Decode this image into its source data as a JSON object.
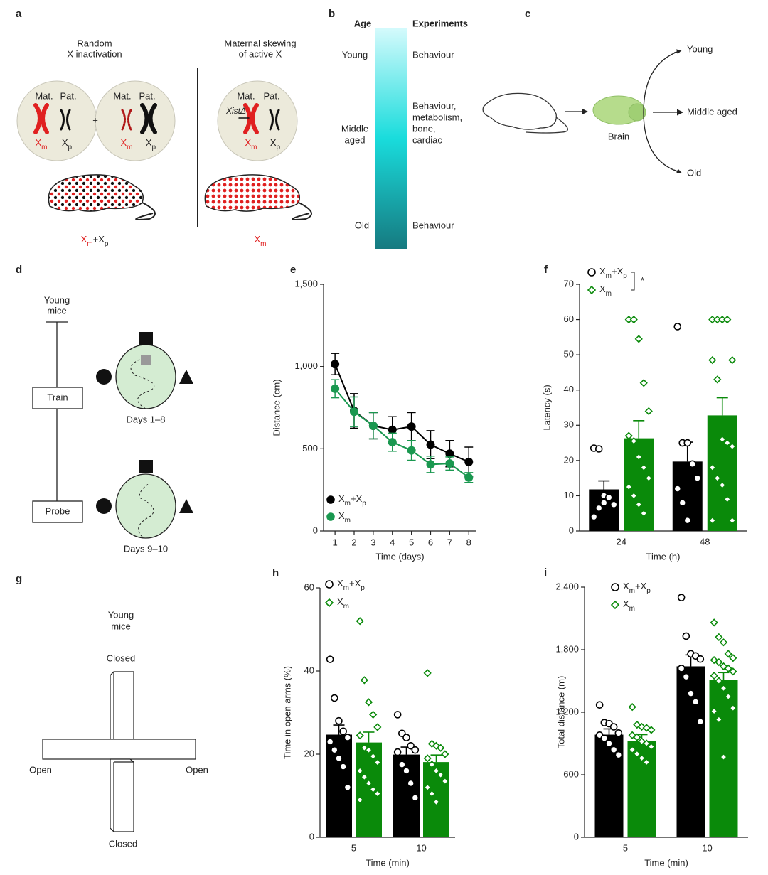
{
  "diagrams": {
    "a": {
      "label": "a",
      "left_title": [
        "Random",
        "X inactivation"
      ],
      "right_title": [
        "Maternal skewing",
        "of active X"
      ],
      "cell1": {
        "mat": "Mat.",
        "pat": "Pat.",
        "xm": "Xm",
        "xp": "Xp"
      },
      "plus": "+",
      "cell2": {
        "mat": "Mat.",
        "pat": "Pat.",
        "xm": "Xm",
        "xp": "Xp"
      },
      "cell3": {
        "mat": "Mat.",
        "pat": "Pat.",
        "xist": "XistΔ",
        "xm": "Xm",
        "xp": "Xp"
      },
      "left_mouse": "Xm+Xp",
      "right_mouse": "Xm"
    },
    "b": {
      "label": "b",
      "age_header": "Age",
      "exp_header": "Experiments",
      "young": "Young",
      "middle": [
        "Middle",
        "aged"
      ],
      "old": "Old",
      "young_exp": "Behaviour",
      "middle_exp": [
        "Behaviour,",
        "metabolism,",
        "bone,",
        "cardiac"
      ],
      "old_exp": "Behaviour"
    },
    "c": {
      "label": "c",
      "brain": "Brain",
      "young": "Young",
      "middle": "Middle aged",
      "old": "Old"
    },
    "d": {
      "label": "d",
      "mice": [
        "Young",
        "mice"
      ],
      "train": "Train",
      "probe": "Probe",
      "days_train": "Days 1–8",
      "days_probe": "Days 9–10"
    },
    "g": {
      "label": "g",
      "mice": [
        "Young",
        "mice"
      ],
      "closed_top": "Closed",
      "closed_bottom": "Closed",
      "open_left": "Open",
      "open_right": "Open"
    }
  },
  "chart_data": [
    {
      "type": "line",
      "label": "e",
      "x_label": "Time (days)",
      "y_label": "Distance (cm)",
      "x": [
        1,
        2,
        3,
        4,
        5,
        6,
        7,
        8
      ],
      "xlim": [
        0.4,
        8.4
      ],
      "xticks": [
        1,
        2,
        3,
        4,
        5,
        6,
        7,
        8
      ],
      "ylim": [
        0,
        1500
      ],
      "yticks": [
        0,
        500,
        {
          "value": 1000,
          "label": "1,000"
        },
        {
          "value": 1500,
          "label": "1,500"
        }
      ],
      "series": [
        {
          "name": "Xm+Xp",
          "color": "#000000",
          "values": [
            1015,
            730,
            640,
            615,
            635,
            525,
            470,
            420
          ],
          "errors": [
            65,
            105,
            80,
            80,
            85,
            85,
            80,
            90
          ]
        },
        {
          "name": "Xm",
          "color": "#1a9850",
          "values": [
            865,
            725,
            640,
            540,
            490,
            405,
            410,
            325
          ],
          "errors": [
            55,
            90,
            80,
            55,
            60,
            50,
            40,
            30
          ]
        }
      ]
    },
    {
      "type": "bar",
      "label": "f",
      "x_label": "Time (h)",
      "y_label": "Latency (s)",
      "significance": "*",
      "categories": [
        "24",
        "48"
      ],
      "ylim": [
        0,
        70
      ],
      "yticks": [
        0,
        10,
        20,
        30,
        40,
        50,
        60,
        70
      ],
      "series": [
        {
          "name": "Xm+Xp",
          "color": "#000000",
          "marker": "circle",
          "values": [
            11.8,
            19.7
          ],
          "errors": [
            2.4,
            5.5
          ],
          "points": [
            [
              23.5,
              23.3,
              10,
              9.5,
              7.5,
              4,
              6.5,
              8
            ],
            [
              58,
              25,
              25,
              19,
              15,
              12,
              8,
              3
            ]
          ]
        },
        {
          "name": "Xm",
          "color": "#0a8a0a",
          "marker": "diamond",
          "values": [
            26.3,
            32.8
          ],
          "errors": [
            5,
            5
          ],
          "points": [
            [
              60,
              60,
              54.5,
              42,
              34,
              27,
              25.5,
              21,
              18,
              15,
              12.5,
              10,
              7.5,
              5
            ],
            [
              60,
              60,
              60,
              60,
              48.5,
              48.5,
              43,
              26,
              25,
              24,
              18,
              15,
              13,
              9,
              3,
              3
            ]
          ]
        }
      ]
    },
    {
      "type": "bar",
      "label": "h",
      "x_label": "Time (min)",
      "y_label": "Time in open arms (%)",
      "categories": [
        "5",
        "10"
      ],
      "ylim": [
        0,
        60
      ],
      "yticks": [
        0,
        20,
        40,
        60
      ],
      "series": [
        {
          "name": "Xm+Xp",
          "color": "#000000",
          "marker": "circle",
          "values": [
            24.7,
            19.9
          ],
          "errors": [
            2.3,
            1.8
          ],
          "points": [
            [
              42.8,
              33.5,
              28,
              25.5,
              24,
              23,
              21,
              19,
              17,
              12
            ],
            [
              29.5,
              25,
              24,
              22,
              21,
              20.5,
              17.5,
              16,
              13,
              9.5
            ]
          ]
        },
        {
          "name": "Xm",
          "color": "#0a8a0a",
          "marker": "diamond",
          "values": [
            22.8,
            18.1
          ],
          "errors": [
            2.5,
            1.7
          ],
          "points": [
            [
              52,
              37.8,
              32.5,
              29.5,
              26.5,
              24.5,
              21.5,
              21,
              19.5,
              18,
              16,
              14.5,
              13,
              11.5,
              10.5,
              9
            ],
            [
              39.5,
              22.5,
              22,
              21.5,
              20,
              19,
              17.5,
              16,
              15,
              13.5,
              12,
              10.5,
              8.5
            ]
          ]
        }
      ]
    },
    {
      "type": "bar",
      "label": "i",
      "x_label": "Time (min)",
      "y_label": "Total distance (m)",
      "categories": [
        "5",
        "10"
      ],
      "ylim": [
        0,
        2400
      ],
      "yticks": [
        0,
        600,
        {
          "value": 1200,
          "label": "1,200"
        },
        {
          "value": 1800,
          "label": "1,800"
        },
        {
          "value": 2400,
          "label": "2,400"
        }
      ],
      "series": [
        {
          "name": "Xm+Xp",
          "color": "#000000",
          "marker": "circle",
          "values": [
            985,
            1640
          ],
          "errors": [
            55,
            110
          ],
          "points": [
            [
              1270,
              1100,
              1090,
              1060,
              1000,
              980,
              950,
              900,
              840,
              790
            ],
            [
              2300,
              1930,
              1760,
              1740,
              1710,
              1620,
              1540,
              1380,
              1300,
              1110
            ]
          ]
        },
        {
          "name": "Xm",
          "color": "#0a8a0a",
          "marker": "diamond",
          "values": [
            925,
            1510
          ],
          "errors": [
            60,
            70
          ],
          "points": [
            [
              1250,
              1080,
              1060,
              1050,
              1030,
              980,
              960,
              920,
              900,
              870,
              840,
              800,
              760,
              720
            ],
            [
              2060,
              1920,
              1870,
              1760,
              1720,
              1700,
              1680,
              1640,
              1620,
              1590,
              1550,
              1500,
              1430,
              1350,
              1240,
              1210,
              1130,
              770
            ]
          ]
        }
      ]
    }
  ]
}
